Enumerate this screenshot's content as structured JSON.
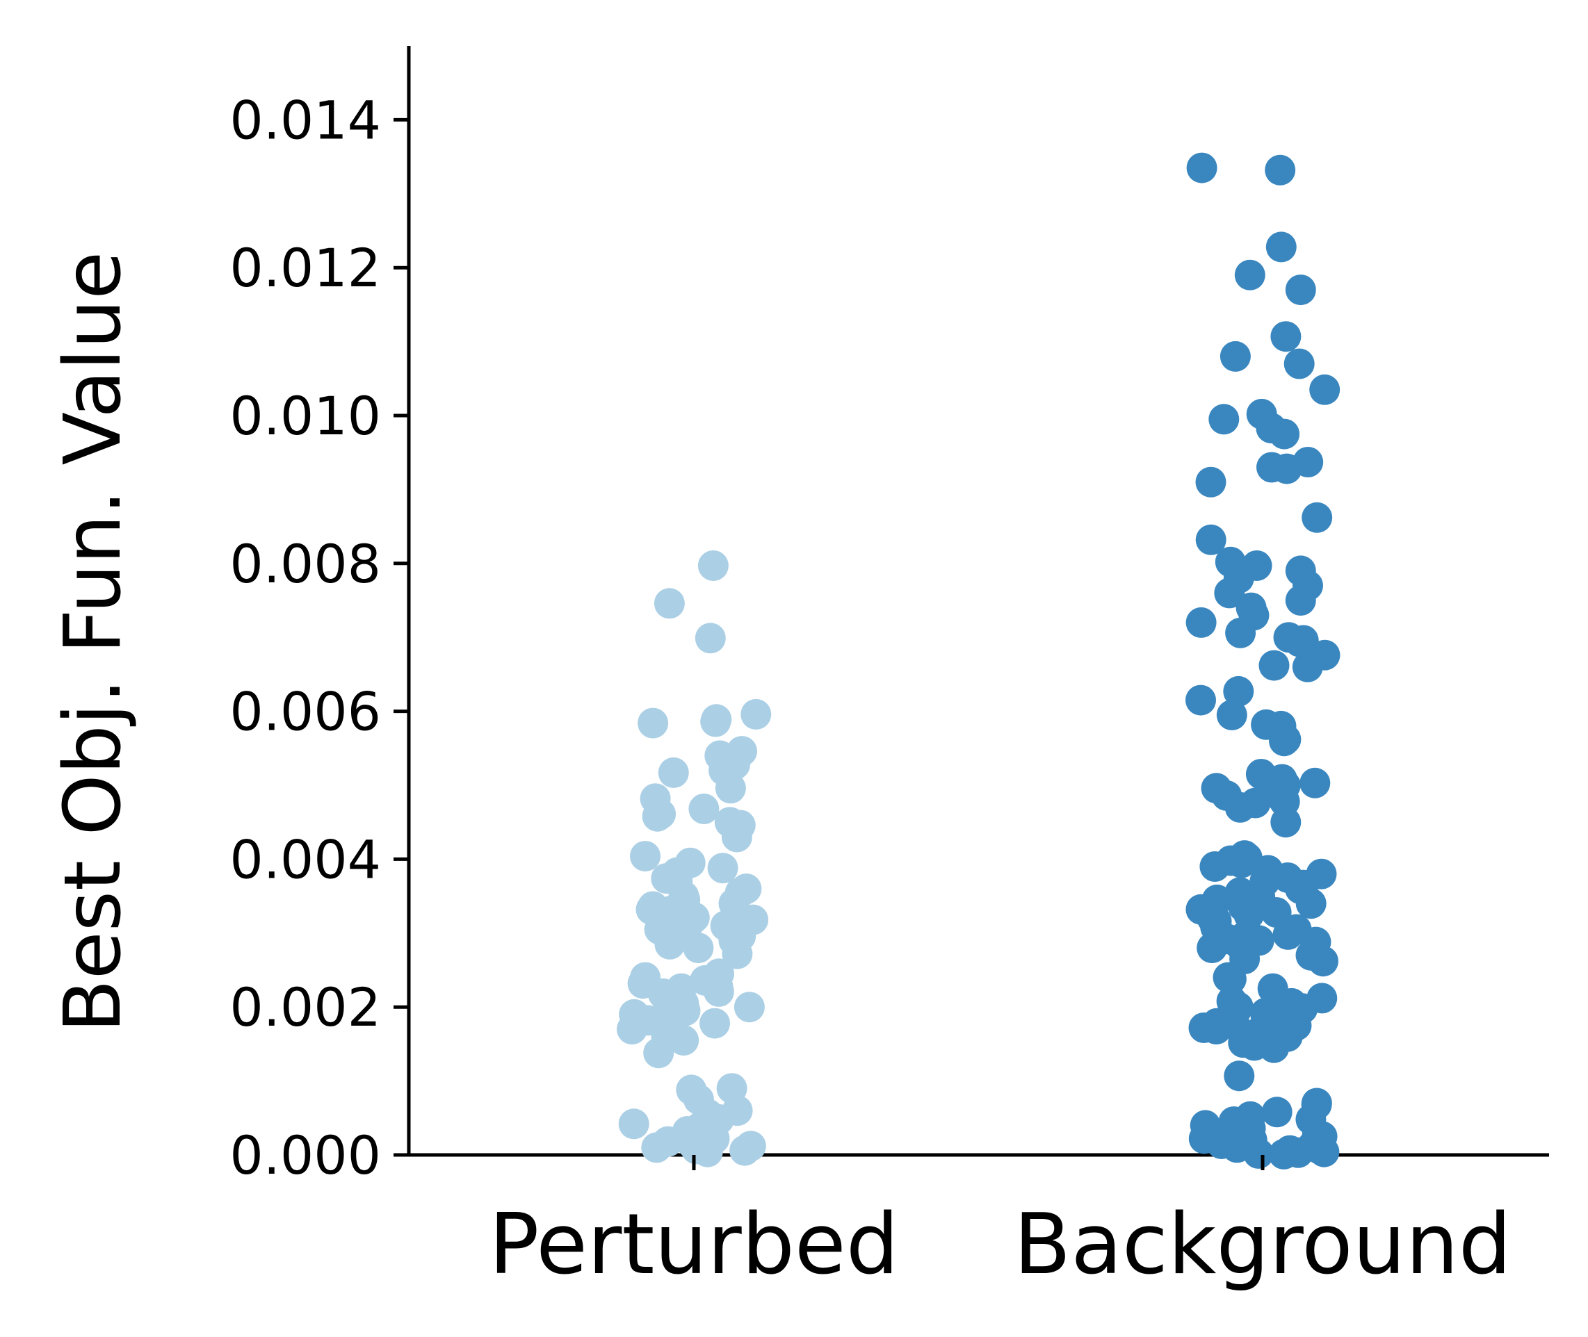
{
  "chart_data": {
    "type": "scatter",
    "subtype": "strip",
    "title": "",
    "xlabel": "",
    "ylabel": "Best Obj. Fun. Value",
    "ylim": [
      0,
      0.015
    ],
    "y_ticks": [
      "0.000",
      "0.002",
      "0.004",
      "0.006",
      "0.008",
      "0.010",
      "0.012",
      "0.014"
    ],
    "y_tick_values": [
      0,
      0.002,
      0.004,
      0.006,
      0.008,
      0.01,
      0.012,
      0.014
    ],
    "categories": [
      "Perturbed",
      "Background"
    ],
    "grid": false,
    "legend": "none",
    "series": [
      {
        "category": "Perturbed",
        "color": "#abcfe5",
        "values": [
          0.00797,
          0.00746,
          0.00699,
          0.00596,
          0.00589,
          0.00586,
          0.00584,
          0.00546,
          0.0054,
          0.00528,
          0.0052,
          0.00517,
          0.00496,
          0.00482,
          0.00468,
          0.00461,
          0.00458,
          0.0045,
          0.00446,
          0.0043,
          0.00404,
          0.00395,
          0.00388,
          0.00382,
          0.00374,
          0.0037,
          0.0036,
          0.00355,
          0.0035,
          0.00345,
          0.0034,
          0.00336,
          0.00332,
          0.0033,
          0.00325,
          0.00321,
          0.00318,
          0.00315,
          0.0031,
          0.00305,
          0.003,
          0.00296,
          0.0029,
          0.00285,
          0.0028,
          0.00272,
          0.00245,
          0.0024,
          0.00236,
          0.00232,
          0.00228,
          0.00225,
          0.00221,
          0.00218,
          0.00214,
          0.0021,
          0.00205,
          0.002,
          0.00195,
          0.0019,
          0.00186,
          0.00182,
          0.00178,
          0.0017,
          0.00165,
          0.0016,
          0.00155,
          0.00138,
          0.0009,
          0.00088,
          0.00075,
          0.0006,
          0.00055,
          0.00048,
          0.00042,
          0.00038,
          0.00032,
          0.00028,
          0.00022,
          0.00018,
          0.00015,
          0.00012,
          0.0001,
          8e-05,
          6e-05,
          4e-05
        ]
      },
      {
        "category": "Background",
        "color": "#3a87c0",
        "values": [
          0.01335,
          0.01332,
          0.01228,
          0.0119,
          0.0117,
          0.01107,
          0.0108,
          0.0107,
          0.01035,
          0.01002,
          0.00995,
          0.00983,
          0.00975,
          0.00937,
          0.0093,
          0.00928,
          0.0091,
          0.00862,
          0.00832,
          0.00802,
          0.00797,
          0.0079,
          0.0078,
          0.0077,
          0.0076,
          0.0075,
          0.0074,
          0.0073,
          0.0072,
          0.00706,
          0.007,
          0.00696,
          0.00694,
          0.00676,
          0.00662,
          0.0066,
          0.00627,
          0.00615,
          0.00595,
          0.00582,
          0.0058,
          0.00562,
          0.0056,
          0.00515,
          0.00508,
          0.00503,
          0.005,
          0.00496,
          0.0049,
          0.00486,
          0.00478,
          0.00476,
          0.0047,
          0.0045,
          0.00405,
          0.00402,
          0.00398,
          0.00395,
          0.0039,
          0.00385,
          0.0038,
          0.00375,
          0.0037,
          0.00365,
          0.0036,
          0.00355,
          0.0035,
          0.00348,
          0.00345,
          0.0034,
          0.00336,
          0.00332,
          0.00328,
          0.00325,
          0.0032,
          0.00316,
          0.00312,
          0.00308,
          0.00305,
          0.003,
          0.00298,
          0.00295,
          0.00292,
          0.0029,
          0.00288,
          0.00285,
          0.0028,
          0.0027,
          0.00265,
          0.00262,
          0.0024,
          0.00238,
          0.00225,
          0.00212,
          0.00208,
          0.00205,
          0.002,
          0.00198,
          0.00195,
          0.00192,
          0.0019,
          0.00188,
          0.00185,
          0.00182,
          0.0018,
          0.00178,
          0.00175,
          0.00172,
          0.0017,
          0.00168,
          0.00165,
          0.00162,
          0.0016,
          0.00158,
          0.00155,
          0.00152,
          0.0015,
          0.00148,
          0.00145,
          0.00107,
          0.0007,
          0.00068,
          0.00058,
          0.00052,
          0.00048,
          0.00045,
          0.0004,
          0.00036,
          0.00032,
          0.00028,
          0.00025,
          0.00022,
          0.0002,
          0.00018,
          0.00015,
          0.00012,
          0.0001,
          8e-05,
          6e-05,
          4e-05,
          3e-05,
          2e-05,
          1e-05
        ]
      }
    ]
  }
}
